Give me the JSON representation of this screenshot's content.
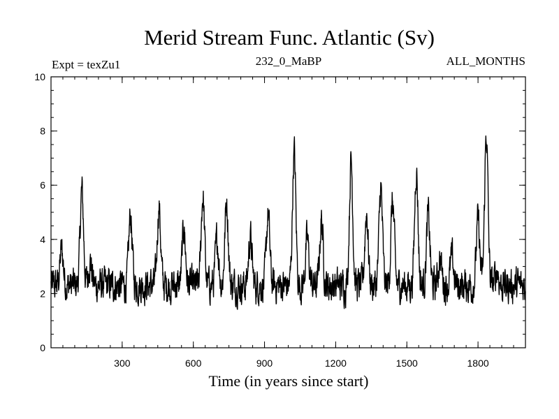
{
  "chart_data": {
    "type": "line",
    "title": "Merid Stream Func. Atlantic (Sv)",
    "subtitle_left": "Expt = texZu1",
    "subtitle_center": "232_0_MaBP",
    "subtitle_right": "ALL_MONTHS",
    "xlabel": "Time (in years since start)",
    "ylabel": "",
    "xlim": [
      0,
      2000
    ],
    "ylim": [
      0,
      10
    ],
    "xticks": [
      300,
      600,
      900,
      1200,
      1500,
      1800
    ],
    "yticks": [
      0,
      2,
      4,
      6,
      8,
      10
    ],
    "grid": false,
    "series": [
      {
        "name": "Merid Stream Func. Atlantic",
        "color": "#000000",
        "baseline": 2.3,
        "noise_amplitude": 0.55,
        "peaks": [
          {
            "x": 45,
            "y": 4.0
          },
          {
            "x": 130,
            "y": 6.2
          },
          {
            "x": 165,
            "y": 3.6
          },
          {
            "x": 335,
            "y": 5.3
          },
          {
            "x": 455,
            "y": 5.6
          },
          {
            "x": 560,
            "y": 4.8
          },
          {
            "x": 640,
            "y": 6.0
          },
          {
            "x": 700,
            "y": 4.4
          },
          {
            "x": 740,
            "y": 5.8
          },
          {
            "x": 840,
            "y": 4.5
          },
          {
            "x": 915,
            "y": 5.3
          },
          {
            "x": 1025,
            "y": 7.6
          },
          {
            "x": 1080,
            "y": 4.4
          },
          {
            "x": 1140,
            "y": 5.1
          },
          {
            "x": 1265,
            "y": 7.3
          },
          {
            "x": 1330,
            "y": 5.4
          },
          {
            "x": 1390,
            "y": 6.3
          },
          {
            "x": 1440,
            "y": 5.8
          },
          {
            "x": 1540,
            "y": 7.0
          },
          {
            "x": 1590,
            "y": 5.3
          },
          {
            "x": 1640,
            "y": 3.7
          },
          {
            "x": 1690,
            "y": 3.7
          },
          {
            "x": 1800,
            "y": 5.1
          },
          {
            "x": 1835,
            "y": 8.3
          },
          {
            "x": 1880,
            "y": 3.3
          }
        ]
      }
    ]
  }
}
